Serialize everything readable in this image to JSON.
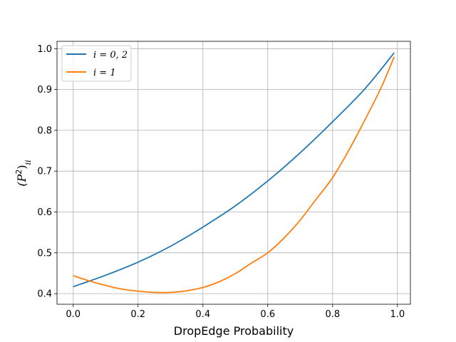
{
  "chart_data": {
    "type": "line",
    "title": "",
    "xlabel": "DropEdge Probability",
    "ylabel_base": "(P",
    "ylabel_sup": "2",
    "ylabel_close": ")",
    "ylabel_sub": "ii",
    "xlim": [
      -0.05,
      1.04
    ],
    "ylim": [
      0.374,
      1.018
    ],
    "xticks": [
      0.0,
      0.2,
      0.4,
      0.6,
      0.8,
      1.0
    ],
    "xtick_labels": [
      "0.0",
      "0.2",
      "0.4",
      "0.6",
      "0.8",
      "1.0"
    ],
    "yticks": [
      0.4,
      0.5,
      0.6,
      0.7,
      0.8,
      0.9,
      1.0
    ],
    "ytick_labels": [
      "0.4",
      "0.5",
      "0.6",
      "0.7",
      "0.8",
      "0.9",
      "1.0"
    ],
    "grid": true,
    "legend_position": "top-left",
    "series": [
      {
        "name": "i = 0, 2",
        "color": "#1f77b4",
        "x": [
          0.0,
          0.1,
          0.2,
          0.3,
          0.4,
          0.5,
          0.6,
          0.7,
          0.8,
          0.9,
          0.99
        ],
        "y": [
          0.417,
          0.445,
          0.477,
          0.516,
          0.563,
          0.615,
          0.676,
          0.745,
          0.821,
          0.902,
          0.99
        ]
      },
      {
        "name": "i = 1",
        "color": "#ff7f0e",
        "x": [
          0.0,
          0.05,
          0.1,
          0.15,
          0.2,
          0.25,
          0.3,
          0.35,
          0.4,
          0.45,
          0.5,
          0.55,
          0.6,
          0.65,
          0.7,
          0.75,
          0.8,
          0.85,
          0.9,
          0.95,
          0.99
        ],
        "y": [
          0.444,
          0.431,
          0.42,
          0.411,
          0.406,
          0.403,
          0.403,
          0.407,
          0.415,
          0.429,
          0.449,
          0.475,
          0.5,
          0.536,
          0.58,
          0.632,
          0.684,
          0.751,
          0.826,
          0.905,
          0.98
        ]
      }
    ]
  }
}
